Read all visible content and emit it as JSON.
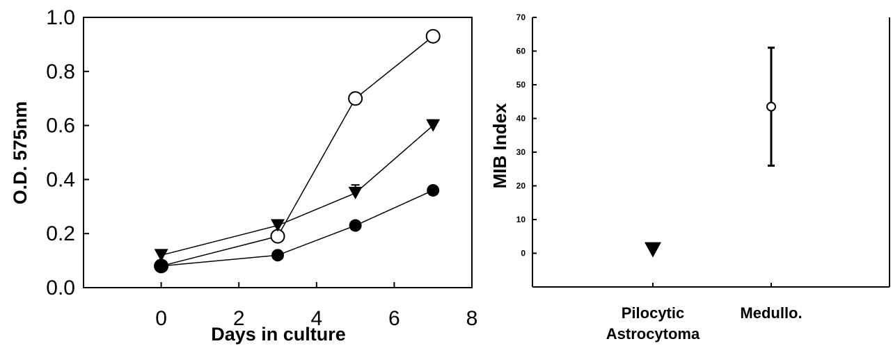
{
  "chart_data": [
    {
      "type": "line",
      "xlabel": "Days in culture",
      "ylabel": "O.D. 575nm",
      "xlim": [
        -2,
        8
      ],
      "ylim": [
        0.0,
        1.0
      ],
      "xticks": [
        0,
        2,
        4,
        6,
        8
      ],
      "yticks": [
        0.0,
        0.2,
        0.4,
        0.6,
        0.8,
        1.0
      ],
      "xtick_labels": [
        "0",
        "2",
        "4",
        "6",
        "8"
      ],
      "ytick_labels": [
        "0.0",
        "0.2",
        "0.4",
        "0.6",
        "0.8",
        "1.0"
      ],
      "grid": false,
      "series": [
        {
          "marker": "open-circle",
          "x": [
            0,
            3,
            5,
            7
          ],
          "y": [
            0.08,
            0.19,
            0.7,
            0.93
          ]
        },
        {
          "marker": "filled-triangle-down",
          "x": [
            0,
            3,
            5,
            7
          ],
          "y": [
            0.12,
            0.23,
            0.35,
            0.6
          ],
          "err": [
            0.02,
            0.01,
            0.03,
            0.02
          ]
        },
        {
          "marker": "filled-circle",
          "x": [
            0,
            3,
            5,
            7
          ],
          "y": [
            0.08,
            0.12,
            0.23,
            0.36
          ]
        }
      ]
    },
    {
      "type": "scatter",
      "ylabel": "MIB Index",
      "ylim": [
        -10,
        70
      ],
      "yticks": [
        0,
        10,
        20,
        30,
        40,
        50,
        60,
        70
      ],
      "ytick_labels": [
        "0",
        "10",
        "20",
        "30",
        "40",
        "50",
        "60",
        "70"
      ],
      "categories": [
        "Pilocytic Astrocytoma",
        "Medullo."
      ],
      "category_label_lines": [
        [
          "Pilocytic",
          "Astrocytoma"
        ],
        [
          "Medullo."
        ]
      ],
      "grid": false,
      "points": [
        {
          "category": "Pilocytic Astrocytoma",
          "marker": "filled-triangle-down",
          "y": 1
        },
        {
          "category": "Medullo.",
          "marker": "open-circle",
          "y": 43.5,
          "err_low": 26,
          "err_high": 61
        }
      ]
    }
  ]
}
